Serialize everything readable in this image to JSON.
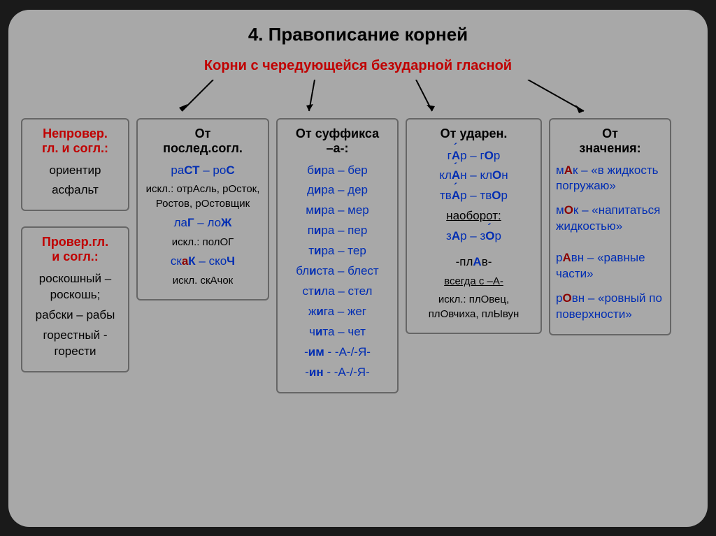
{
  "title": "4. Правописание корней",
  "subtitle": "Корни с чередующейся безударной гласной",
  "colors": {
    "title_red": "#c00000",
    "blue": "#002db3",
    "darkred": "#8b0000",
    "bg": "#a8a8a8",
    "border": "#666666"
  },
  "left": {
    "box1": {
      "title1": "Непровер.",
      "title2": "гл. и согл.:",
      "lines": [
        "ориентир",
        "асфальт"
      ]
    },
    "box2": {
      "title1": "Провер.гл.",
      "title2": "и согл.:",
      "lines": [
        "роскошный – роскошь;",
        "рабски – рабы",
        "горестный - горести"
      ]
    }
  },
  "col2": {
    "title1": "От",
    "title2": "послед.согл.",
    "l1a": "ра",
    "l1b": "СТ",
    "l1c": " – ро",
    "l1d": "С",
    "ex1": "искл.: отрАсль, рОсток, Ростов, рОстовщик",
    "l2a": "ла",
    "l2b": "Г",
    "l2c": " – ло",
    "l2d": "Ж",
    "ex2": "искл.: полОГ",
    "l3a": "ск",
    "l3a2": "а",
    "l3b": "К",
    "l3c": " – ско",
    "l3d": "Ч",
    "ex3": "искл. скАчок"
  },
  "col3": {
    "title1": "От суффикса",
    "title2": "–а-:",
    "pairs": [
      [
        "б",
        "и",
        "ра",
        " – бер"
      ],
      [
        "д",
        "и",
        "ра",
        " – дер"
      ],
      [
        "м",
        "и",
        "ра",
        " – мер"
      ],
      [
        "п",
        "и",
        "ра",
        " – пер"
      ],
      [
        "т",
        "и",
        "ра",
        " – тер"
      ],
      [
        "бл",
        "и",
        "ста",
        " – блест"
      ],
      [
        "ст",
        "и",
        "ла",
        " – стел"
      ],
      [
        "ж",
        "и",
        "га",
        " – жег"
      ],
      [
        "ч",
        "и",
        "та",
        " – чет"
      ]
    ],
    "im": "-им - -А-/-Я-",
    "in": "-ин - -А-/-Я-"
  },
  "col4": {
    "title": "От ударен.",
    "l1a": "г",
    "l1b": "А",
    "l1c": "р – г",
    "l1d": "О",
    "l1e": "р",
    "l2a": "кл",
    "l2b": "А",
    "l2c": "н – кл",
    "l2d": "О",
    "l2e": "н",
    "l3a": "тв",
    "l3b": "А",
    "l3c": "р – тв",
    "l3d": "О",
    "l3e": "р",
    "reverse": "наоборот:",
    "l4a": "з",
    "l4b": "А",
    "l4c": "р – з",
    "l4d": "О",
    "l4e": "р",
    "plav": "-плАв-",
    "always": "всегда с –А-",
    "ex": "искл.: плОвец, плОвчиха, плЫвун"
  },
  "col5": {
    "title1": "От",
    "title2": "значения:",
    "l1a": "м",
    "l1b": "А",
    "l1c": "к – «в жидкость погружаю»",
    "l2a": "м",
    "l2b": "О",
    "l2c": "к – «напитаться жидкостью»",
    "l3a": "р",
    "l3b": "А",
    "l3c": "вн – «равные части»",
    "l4a": "р",
    "l4b": "О",
    "l4c": "вн – «ровный по поверхности»"
  }
}
